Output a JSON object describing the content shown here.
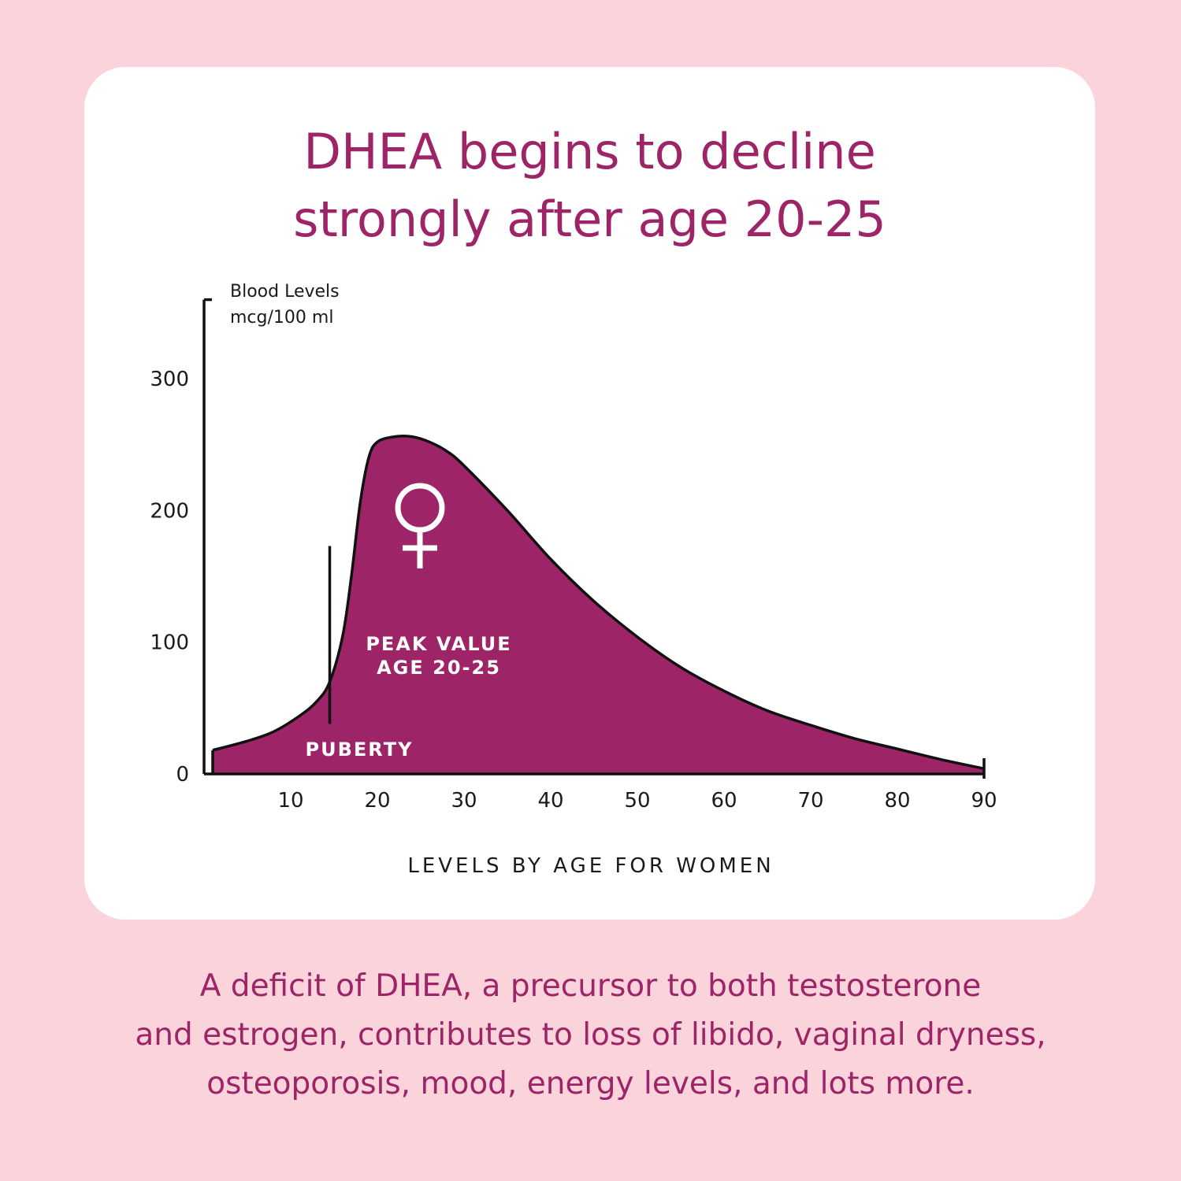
{
  "page": {
    "headline_line1": "DHEA begins to decline",
    "headline_line2": "strongly after age 20-25",
    "footer_line1": "A deficit of DHEA, a precursor to both testosterone",
    "footer_line2": "and estrogen, contributes to loss of libido, vaginal dryness,",
    "footer_line3": "osteoporosis, mood, energy levels, and lots more."
  },
  "colors": {
    "background": "#fbd3db",
    "card": "#ffffff",
    "accent": "#9e2468",
    "axis": "#111111"
  },
  "chart_data": {
    "type": "area",
    "title": "DHEA begins to decline strongly after age 20-25",
    "ylabel_line1": "Blood Levels",
    "ylabel_line2": "mcg/100 ml",
    "xlabel": "LEVELS BY AGE FOR WOMEN",
    "xlim": [
      0,
      90
    ],
    "ylim": [
      0,
      300
    ],
    "y_axis_top": 360,
    "x_ticks": [
      10,
      20,
      30,
      40,
      50,
      60,
      70,
      80,
      90
    ],
    "y_ticks": [
      0,
      100,
      200,
      300
    ],
    "grid": false,
    "series": [
      {
        "x": [
          1,
          5,
          8,
          11,
          13,
          14.5,
          16,
          17,
          18,
          19,
          20,
          22,
          24,
          26,
          28,
          30,
          35,
          40,
          45,
          50,
          55,
          60,
          65,
          70,
          75,
          80,
          85,
          90
        ],
        "y": [
          18,
          25,
          32,
          44,
          55,
          70,
          105,
          150,
          205,
          240,
          252,
          256,
          256,
          252,
          245,
          234,
          200,
          163,
          131,
          104,
          81,
          63,
          48,
          37,
          27,
          19,
          11,
          4
        ]
      }
    ],
    "annotations": [
      {
        "label": "PUBERTY",
        "type": "vline",
        "x": 14.5,
        "y_top": 173,
        "y_bottom": 38
      },
      {
        "label_line1": "PEAK VALUE",
        "label_line2": "AGE 20-25",
        "x": 26,
        "y": 98
      },
      {
        "symbol": "female-symbol-icon",
        "x": 24.5,
        "y": 190
      }
    ]
  }
}
